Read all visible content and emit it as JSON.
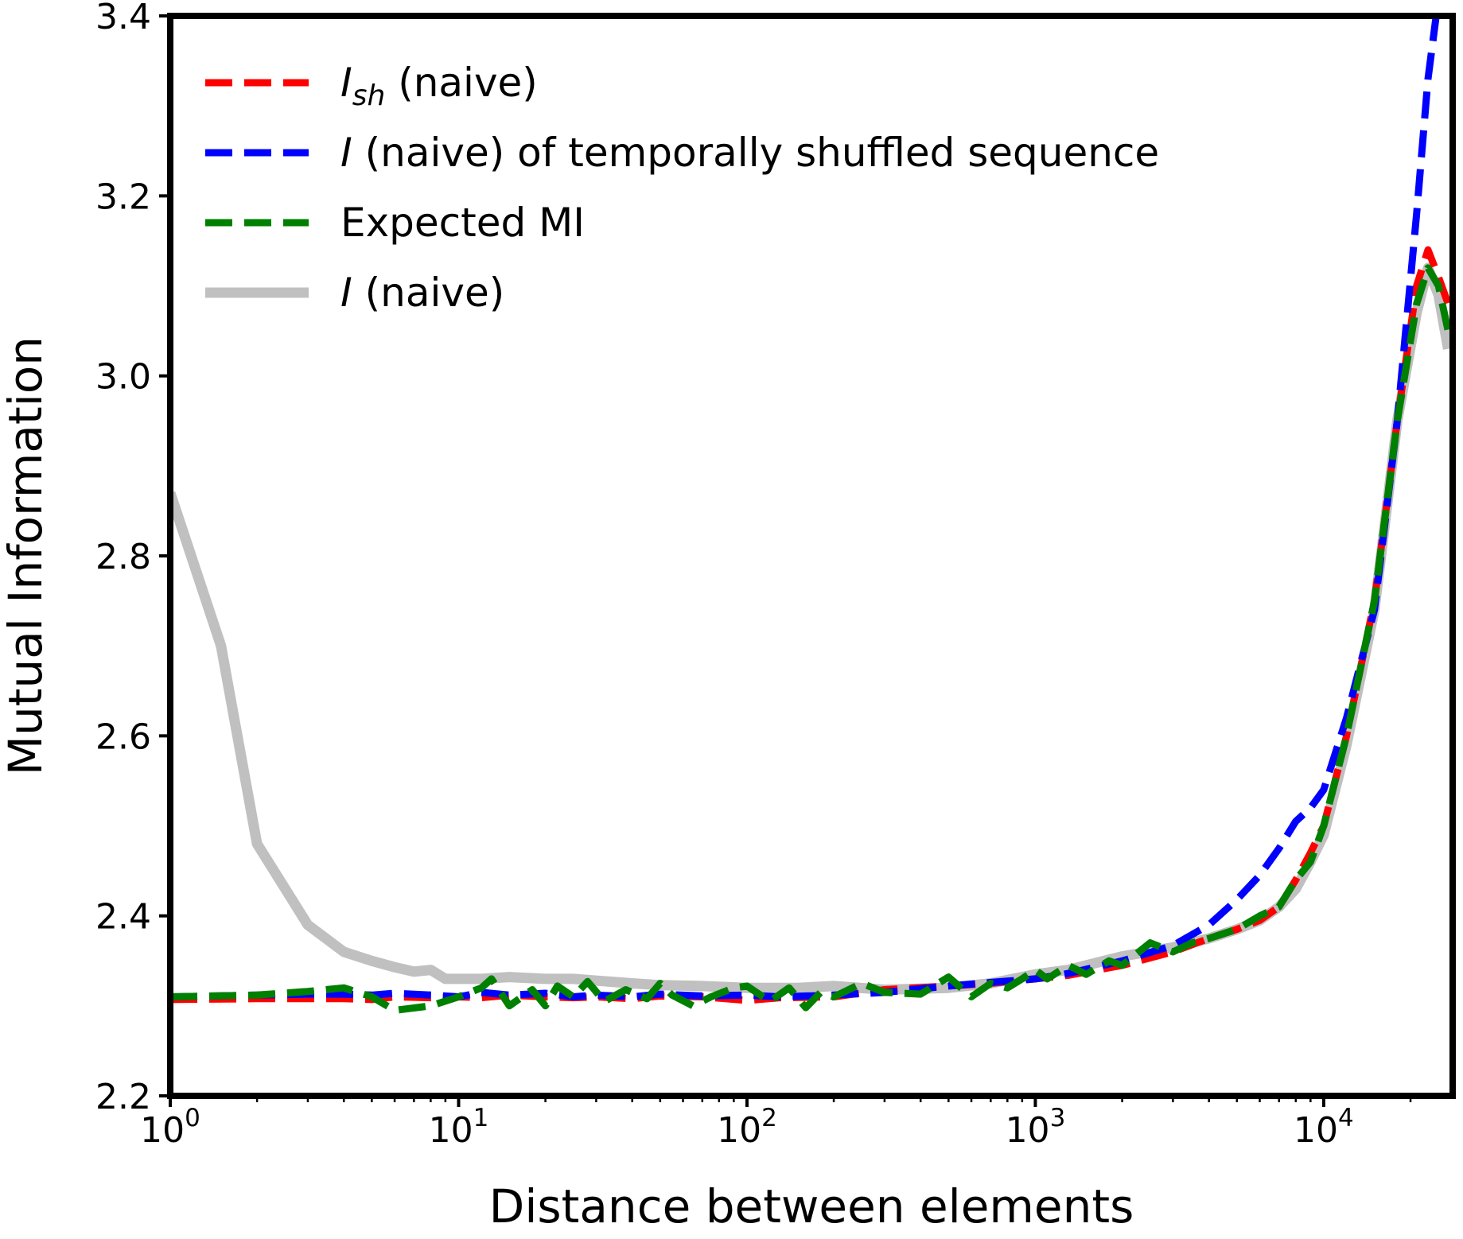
{
  "chart_data": {
    "type": "line",
    "title": "",
    "xlabel": "Distance between elements",
    "ylabel": "Mutual Information",
    "xscale": "log",
    "xlim": [
      1,
      28000
    ],
    "ylim": [
      2.2,
      3.4
    ],
    "grid": false,
    "legend_position": "top-left",
    "x_ticks": [
      {
        "value": 1,
        "base": "10",
        "exp": "0"
      },
      {
        "value": 10,
        "base": "10",
        "exp": "1"
      },
      {
        "value": 100,
        "base": "10",
        "exp": "2"
      },
      {
        "value": 1000,
        "base": "10",
        "exp": "3"
      },
      {
        "value": 10000,
        "base": "10",
        "exp": "4"
      }
    ],
    "y_ticks": [
      {
        "value": 2.2,
        "label": "2.2"
      },
      {
        "value": 2.4,
        "label": "2.4"
      },
      {
        "value": 2.6,
        "label": "2.6"
      },
      {
        "value": 2.8,
        "label": "2.8"
      },
      {
        "value": 3.0,
        "label": "3.0"
      },
      {
        "value": 3.2,
        "label": "3.2"
      },
      {
        "value": 3.4,
        "label": "3.4"
      }
    ],
    "series": [
      {
        "name": "I_sh (naive)",
        "legend": {
          "main": "I",
          "sub": "sh",
          "rest": " (naive)"
        },
        "color": "#ff0000",
        "dashed": true,
        "x": [
          1,
          2,
          3,
          4,
          5,
          6,
          8,
          10,
          12,
          15,
          20,
          25,
          30,
          40,
          50,
          70,
          100,
          130,
          200,
          300,
          500,
          700,
          1000,
          1300,
          2000,
          3000,
          4000,
          5000,
          6000,
          7000,
          8000,
          9000,
          10000,
          12000,
          15000,
          18000,
          21000,
          23000,
          25000,
          27000
        ],
        "y": [
          2.307,
          2.308,
          2.308,
          2.308,
          2.307,
          2.31,
          2.309,
          2.31,
          2.309,
          2.312,
          2.31,
          2.309,
          2.31,
          2.308,
          2.311,
          2.31,
          2.306,
          2.309,
          2.31,
          2.318,
          2.322,
          2.325,
          2.33,
          2.334,
          2.345,
          2.36,
          2.375,
          2.385,
          2.395,
          2.41,
          2.44,
          2.47,
          2.5,
          2.6,
          2.75,
          2.95,
          3.1,
          3.14,
          3.11,
          3.08
        ]
      },
      {
        "name": "I (naive) of temporally shuffled sequence",
        "legend": {
          "main": "I",
          "sub": "",
          "rest": " (naive) of temporally shuffled sequence"
        },
        "color": "#0000ff",
        "dashed": true,
        "x": [
          1,
          2,
          3,
          4,
          5,
          6,
          8,
          10,
          12,
          15,
          20,
          25,
          30,
          40,
          50,
          70,
          100,
          130,
          200,
          300,
          500,
          700,
          1000,
          1300,
          2000,
          3000,
          4000,
          5000,
          6000,
          7000,
          8000,
          9000,
          10000,
          12000,
          15000,
          18000,
          21000,
          23000,
          25000
        ],
        "y": [
          2.31,
          2.312,
          2.313,
          2.313,
          2.312,
          2.314,
          2.312,
          2.31,
          2.315,
          2.312,
          2.314,
          2.31,
          2.312,
          2.31,
          2.313,
          2.311,
          2.312,
          2.31,
          2.312,
          2.315,
          2.322,
          2.326,
          2.33,
          2.336,
          2.35,
          2.367,
          2.39,
          2.418,
          2.445,
          2.475,
          2.505,
          2.52,
          2.54,
          2.62,
          2.74,
          2.95,
          3.18,
          3.33,
          3.42
        ]
      },
      {
        "name": "Expected MI",
        "legend": {
          "main": "Expected MI",
          "sub": "",
          "rest": ""
        },
        "color": "#008000",
        "dashed": true,
        "x": [
          1,
          2,
          3,
          4,
          5,
          6,
          8,
          10,
          12,
          13,
          15,
          18,
          20,
          22,
          25,
          28,
          32,
          38,
          45,
          50,
          55,
          65,
          75,
          90,
          100,
          120,
          140,
          160,
          180,
          200,
          250,
          300,
          400,
          500,
          600,
          700,
          800,
          900,
          1000,
          1100,
          1300,
          1500,
          1800,
          2000,
          2500,
          3000,
          3500,
          4000,
          5000,
          6000,
          7000,
          8000,
          9000,
          10000,
          12000,
          15000,
          18000,
          21000,
          23000,
          25000,
          27000
        ],
        "y": [
          2.31,
          2.312,
          2.316,
          2.32,
          2.31,
          2.295,
          2.3,
          2.31,
          2.32,
          2.33,
          2.3,
          2.318,
          2.3,
          2.322,
          2.31,
          2.327,
          2.305,
          2.318,
          2.308,
          2.325,
          2.312,
          2.3,
          2.31,
          2.32,
          2.322,
          2.305,
          2.32,
          2.298,
          2.315,
          2.31,
          2.325,
          2.315,
          2.313,
          2.332,
          2.31,
          2.325,
          2.32,
          2.33,
          2.34,
          2.33,
          2.345,
          2.335,
          2.35,
          2.345,
          2.37,
          2.36,
          2.37,
          2.375,
          2.385,
          2.4,
          2.41,
          2.44,
          2.46,
          2.5,
          2.6,
          2.75,
          2.95,
          3.08,
          3.12,
          3.1,
          3.05
        ]
      },
      {
        "name": "I (naive)",
        "legend": {
          "main": "I",
          "sub": "",
          "rest": " (naive)"
        },
        "color": "#c0c0c0",
        "dashed": false,
        "x": [
          1,
          1.5,
          2,
          3,
          4,
          5,
          6,
          7,
          8,
          9,
          10,
          12,
          15,
          20,
          25,
          30,
          40,
          50,
          70,
          100,
          150,
          200,
          300,
          500,
          700,
          1000,
          1300,
          2000,
          3000,
          4000,
          5000,
          6000,
          7000,
          8000,
          9000,
          10000,
          12000,
          15000,
          18000,
          21000,
          23000,
          25000,
          27000
        ],
        "y": [
          2.87,
          2.7,
          2.48,
          2.39,
          2.36,
          2.35,
          2.343,
          2.338,
          2.34,
          2.33,
          2.33,
          2.33,
          2.332,
          2.33,
          2.33,
          2.328,
          2.325,
          2.323,
          2.322,
          2.32,
          2.32,
          2.322,
          2.318,
          2.32,
          2.325,
          2.335,
          2.34,
          2.355,
          2.365,
          2.375,
          2.385,
          2.395,
          2.41,
          2.43,
          2.46,
          2.49,
          2.59,
          2.74,
          2.95,
          3.07,
          3.12,
          3.09,
          3.03
        ]
      }
    ]
  }
}
